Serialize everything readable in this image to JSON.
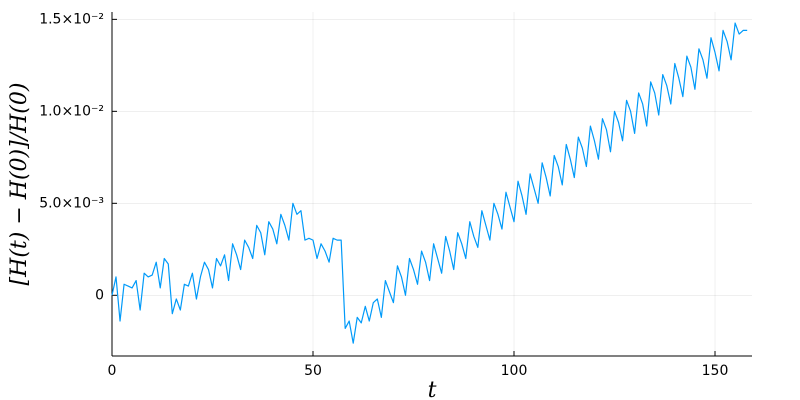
{
  "chart_data": {
    "type": "line",
    "x_label": "t",
    "y_label": "[H(t) − H(0)]/H(0)",
    "x": [
      0,
      1,
      2,
      3,
      4,
      5,
      6,
      7,
      8,
      9,
      10,
      11,
      12,
      13,
      14,
      15,
      16,
      17,
      18,
      19,
      20,
      21,
      22,
      23,
      24,
      25,
      26,
      27,
      28,
      29,
      30,
      31,
      32,
      33,
      34,
      35,
      36,
      37,
      38,
      39,
      40,
      41,
      42,
      43,
      44,
      45,
      46,
      47,
      48,
      49,
      50,
      51,
      52,
      53,
      54,
      55,
      56,
      57,
      58,
      59,
      60,
      61,
      62,
      63,
      64,
      65,
      66,
      67,
      68,
      69,
      70,
      71,
      72,
      73,
      74,
      75,
      76,
      77,
      78,
      79,
      80,
      81,
      82,
      83,
      84,
      85,
      86,
      87,
      88,
      89,
      90,
      91,
      92,
      93,
      94,
      95,
      96,
      97,
      98,
      99,
      100,
      101,
      102,
      103,
      104,
      105,
      106,
      107,
      108,
      109,
      110,
      111,
      112,
      113,
      114,
      115,
      116,
      117,
      118,
      119,
      120,
      121,
      122,
      123,
      124,
      125,
      126,
      127,
      128,
      129,
      130,
      131,
      132,
      133,
      134,
      135,
      136,
      137,
      138,
      139,
      140,
      141,
      142,
      143,
      144,
      145,
      146,
      147,
      148,
      149,
      150,
      151,
      152,
      153,
      154,
      155,
      156,
      157,
      158
    ],
    "series": [
      {
        "color": "#009af9",
        "values": [
          0,
          0.001,
          -0.0014,
          0.0006,
          0.0005,
          0.0004,
          0.0008,
          -0.0008,
          0.0012,
          0.001,
          0.0011,
          0.0018,
          0.0004,
          0.002,
          0.0017,
          -0.001,
          -0.0002,
          -0.0008,
          0.0006,
          0.0005,
          0.0012,
          -0.0002,
          0.001,
          0.0018,
          0.0014,
          0.0004,
          0.002,
          0.0016,
          0.0022,
          0.0008,
          0.0028,
          0.0022,
          0.0014,
          0.003,
          0.0026,
          0.002,
          0.0038,
          0.0034,
          0.0022,
          0.004,
          0.0036,
          0.0028,
          0.0044,
          0.0038,
          0.003,
          0.005,
          0.0044,
          0.0046,
          0.003,
          0.0031,
          0.003,
          0.002,
          0.0028,
          0.0024,
          0.0018,
          0.0031,
          0.003,
          0.003,
          -0.0018,
          -0.0014,
          -0.0026,
          -0.0012,
          -0.0015,
          -0.0006,
          -0.0014,
          -0.0004,
          -0.0002,
          -0.0012,
          0.0008,
          0.0002,
          -0.0004,
          0.0016,
          0.001,
          0,
          0.002,
          0.0014,
          0.0006,
          0.0024,
          0.0018,
          0.0008,
          0.0028,
          0.002,
          0.0012,
          0.0032,
          0.0024,
          0.0014,
          0.0034,
          0.0028,
          0.002,
          0.004,
          0.0032,
          0.0026,
          0.0046,
          0.0038,
          0.003,
          0.005,
          0.0044,
          0.0036,
          0.0056,
          0.0048,
          0.004,
          0.0062,
          0.0054,
          0.0044,
          0.0066,
          0.0058,
          0.005,
          0.0072,
          0.0064,
          0.0054,
          0.0076,
          0.007,
          0.006,
          0.0082,
          0.0074,
          0.0064,
          0.0086,
          0.008,
          0.007,
          0.0092,
          0.0084,
          0.0074,
          0.0096,
          0.009,
          0.0078,
          0.01,
          0.0094,
          0.0084,
          0.0106,
          0.01,
          0.0088,
          0.011,
          0.0104,
          0.0092,
          0.0116,
          0.011,
          0.0098,
          0.012,
          0.0114,
          0.0104,
          0.0126,
          0.0118,
          0.0108,
          0.013,
          0.0124,
          0.0112,
          0.0134,
          0.0128,
          0.0118,
          0.014,
          0.0132,
          0.0122,
          0.0144,
          0.0138,
          0.0128,
          0.0148,
          0.0142,
          0.0144,
          0.0144
        ]
      }
    ],
    "xlim": [
      0,
      159.2
    ],
    "ylim": [
      -0.0033,
      0.0154
    ],
    "xticks": [
      0,
      50,
      100,
      150
    ],
    "yticks": [
      0,
      {
        "value": 0.005,
        "label": "5.0×10⁻³"
      },
      {
        "value": 0.01,
        "label": "1.0×10⁻²"
      },
      {
        "value": 0.015,
        "label": "1.5×10⁻²"
      }
    ],
    "grid": true
  }
}
